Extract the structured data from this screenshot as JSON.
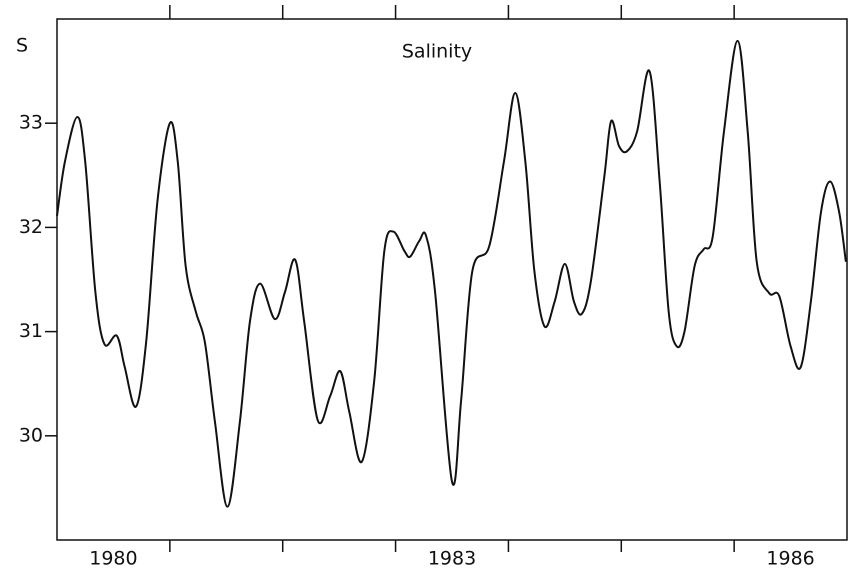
{
  "chart_data": {
    "type": "line",
    "title": "Salinity",
    "y_label": "S",
    "xlim": [
      1980,
      1987
    ],
    "ylim": [
      29,
      34
    ],
    "yticks": [
      30,
      31,
      32,
      33
    ],
    "xticks": [
      1981,
      1982,
      1983,
      1984,
      1985,
      1986
    ],
    "xtick_labels": [
      {
        "value": 1980.5,
        "label": "1980"
      },
      {
        "value": 1983.5,
        "label": "1983"
      },
      {
        "value": 1986.5,
        "label": "1986"
      }
    ],
    "grid": false,
    "series": [
      {
        "name": "Salinity",
        "color": "#111111",
        "x": [
          1980.0,
          1980.07,
          1980.18,
          1980.25,
          1980.34,
          1980.42,
          1980.53,
          1980.6,
          1980.7,
          1980.79,
          1980.89,
          1981.0,
          1981.07,
          1981.14,
          1981.23,
          1981.31,
          1981.4,
          1981.51,
          1981.62,
          1981.71,
          1981.8,
          1981.93,
          1982.02,
          1982.11,
          1982.19,
          1982.31,
          1982.42,
          1982.51,
          1982.59,
          1982.7,
          1982.81,
          1982.9,
          1982.98,
          1983.08,
          1983.13,
          1983.21,
          1983.27,
          1983.35,
          1983.5,
          1983.58,
          1983.68,
          1983.83,
          1983.96,
          1984.06,
          1984.15,
          1984.23,
          1984.32,
          1984.41,
          1984.5,
          1984.58,
          1984.65,
          1984.73,
          1984.85,
          1984.91,
          1984.98,
          1985.05,
          1985.14,
          1985.25,
          1985.34,
          1985.42,
          1985.49,
          1985.56,
          1985.65,
          1985.73,
          1985.81,
          1985.91,
          1986.03,
          1986.12,
          1986.2,
          1986.31,
          1986.4,
          1986.5,
          1986.59,
          1986.68,
          1986.77,
          1986.85,
          1986.93,
          1986.99
        ],
        "values": [
          32.11,
          32.63,
          33.06,
          32.63,
          31.38,
          30.88,
          30.96,
          30.66,
          30.28,
          30.9,
          32.25,
          33.0,
          32.63,
          31.63,
          31.19,
          30.9,
          30.13,
          29.32,
          30.13,
          31.1,
          31.46,
          31.12,
          31.38,
          31.69,
          31.1,
          30.15,
          30.38,
          30.62,
          30.23,
          29.75,
          30.52,
          31.77,
          31.96,
          31.77,
          31.72,
          31.87,
          31.92,
          31.38,
          29.56,
          30.33,
          31.58,
          31.82,
          32.63,
          33.29,
          32.63,
          31.58,
          31.05,
          31.29,
          31.65,
          31.29,
          31.17,
          31.48,
          32.49,
          33.02,
          32.78,
          32.73,
          32.92,
          33.5,
          32.44,
          31.19,
          30.86,
          31.0,
          31.63,
          31.79,
          31.91,
          32.92,
          33.79,
          32.92,
          31.67,
          31.37,
          31.34,
          30.86,
          30.66,
          31.29,
          32.15,
          32.44,
          32.15,
          31.67
        ]
      }
    ]
  }
}
